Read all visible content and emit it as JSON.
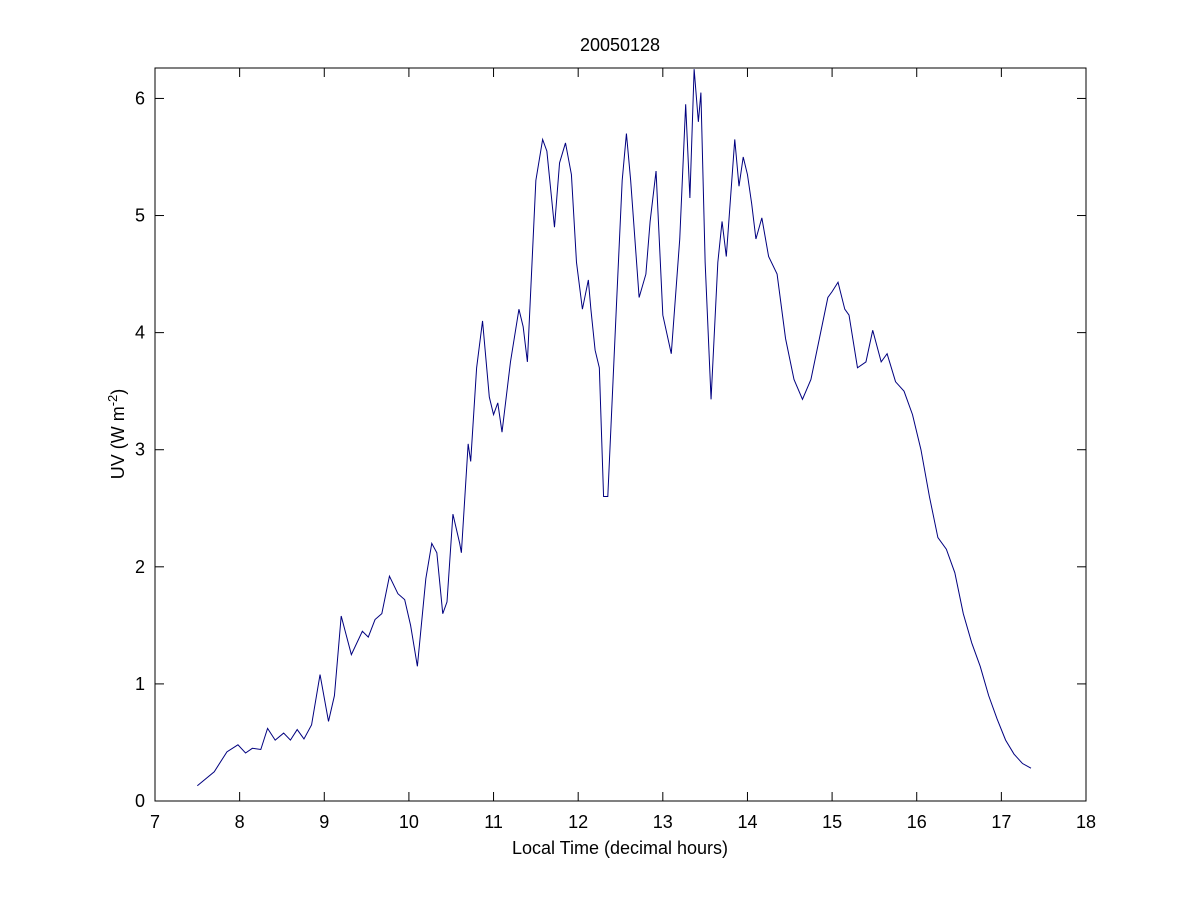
{
  "chart_data": {
    "type": "line",
    "title": "20050128",
    "x_label": "Local Time (decimal hours)",
    "y_label": {
      "text": "UV (W m",
      "superscript": "-2",
      "suffix": ")"
    },
    "xlim": [
      7,
      18
    ],
    "xticks": [
      7,
      8,
      9,
      10,
      11,
      12,
      13,
      14,
      15,
      16,
      17,
      18
    ],
    "ylim": [
      0,
      6.26
    ],
    "yticks": [
      0,
      1,
      2,
      3,
      4,
      5,
      6
    ],
    "grid": false,
    "series": [
      {
        "color": "#00007f",
        "x": [
          7.5,
          7.7,
          7.85,
          7.98,
          8.07,
          8.15,
          8.25,
          8.33,
          8.42,
          8.52,
          8.6,
          8.68,
          8.76,
          8.85,
          8.95,
          9.05,
          9.12,
          9.2,
          9.32,
          9.45,
          9.52,
          9.6,
          9.68,
          9.77,
          9.87,
          9.95,
          10.02,
          10.1,
          10.2,
          10.27,
          10.33,
          10.4,
          10.45,
          10.52,
          10.6,
          10.62,
          10.7,
          10.73,
          10.8,
          10.87,
          10.95,
          11.0,
          11.05,
          11.1,
          11.2,
          11.3,
          11.35,
          11.4,
          11.5,
          11.58,
          11.63,
          11.72,
          11.78,
          11.85,
          11.92,
          11.98,
          12.05,
          12.12,
          12.15,
          12.2,
          12.25,
          12.3,
          12.35,
          12.45,
          12.52,
          12.57,
          12.62,
          12.72,
          12.8,
          12.85,
          12.92,
          13.0,
          13.1,
          13.2,
          13.27,
          13.32,
          13.37,
          13.42,
          13.45,
          13.5,
          13.57,
          13.65,
          13.7,
          13.75,
          13.85,
          13.9,
          13.95,
          14.0,
          14.05,
          14.1,
          14.17,
          14.25,
          14.35,
          14.45,
          14.55,
          14.65,
          14.75,
          14.85,
          14.95,
          15.0,
          15.07,
          15.15,
          15.2,
          15.3,
          15.4,
          15.48,
          15.58,
          15.65,
          15.75,
          15.85,
          15.95,
          16.05,
          16.15,
          16.25,
          16.35,
          16.45,
          16.55,
          16.65,
          16.75,
          16.85,
          16.95,
          17.05,
          17.15,
          17.25,
          17.35
        ],
        "values": [
          0.13,
          0.25,
          0.42,
          0.48,
          0.41,
          0.45,
          0.44,
          0.62,
          0.52,
          0.58,
          0.52,
          0.61,
          0.53,
          0.65,
          1.08,
          0.68,
          0.9,
          1.58,
          1.25,
          1.45,
          1.4,
          1.55,
          1.6,
          1.92,
          1.77,
          1.72,
          1.5,
          1.15,
          1.9,
          2.2,
          2.12,
          1.6,
          1.7,
          2.45,
          2.2,
          2.12,
          3.05,
          2.9,
          3.7,
          4.1,
          3.45,
          3.3,
          3.4,
          3.15,
          3.75,
          4.2,
          4.05,
          3.75,
          5.3,
          5.65,
          5.55,
          4.9,
          5.45,
          5.62,
          5.35,
          4.6,
          4.2,
          4.45,
          4.2,
          3.85,
          3.7,
          2.6,
          2.6,
          4.2,
          5.3,
          5.7,
          5.3,
          4.3,
          4.5,
          4.95,
          5.38,
          4.15,
          3.82,
          4.8,
          5.95,
          5.15,
          6.25,
          5.8,
          6.05,
          4.6,
          3.43,
          4.6,
          4.95,
          4.65,
          5.65,
          5.25,
          5.5,
          5.35,
          5.1,
          4.8,
          4.98,
          4.65,
          4.5,
          3.95,
          3.6,
          3.43,
          3.6,
          3.95,
          4.3,
          4.35,
          4.43,
          4.2,
          4.15,
          3.7,
          3.75,
          4.02,
          3.75,
          3.82,
          3.58,
          3.5,
          3.3,
          3.0,
          2.6,
          2.25,
          2.15,
          1.95,
          1.6,
          1.35,
          1.15,
          0.9,
          0.7,
          0.52,
          0.4,
          0.32,
          0.28
        ]
      }
    ]
  }
}
